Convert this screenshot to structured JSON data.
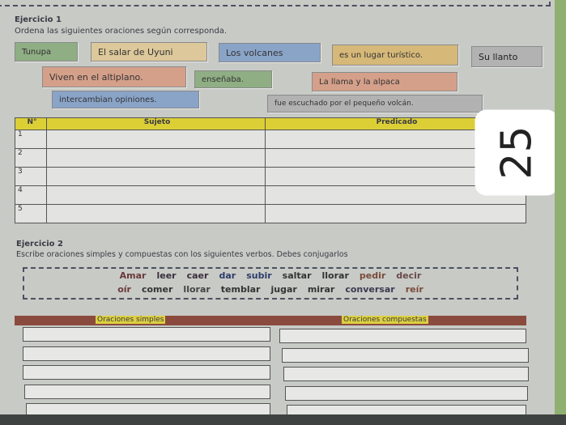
{
  "ex1": {
    "title": "Ejercicio 1",
    "instruction": "Ordena las siguientes oraciones según corresponda.",
    "chips": [
      "Tunupa",
      "El salar de Uyuni",
      "Los volcanes",
      "es un lugar turístico.",
      "Su llanto",
      "Viven en el altiplano.",
      "enseñaba.",
      "La llama y la alpaca",
      "intercambian opiniones.",
      "fue escuchado por el pequeño volcán."
    ],
    "table": {
      "headers": [
        "N°",
        "Sujeto",
        "Predicado"
      ],
      "rows": [
        "1",
        "2",
        "3",
        "4",
        "5"
      ]
    }
  },
  "page_number": "25",
  "ex2": {
    "title": "Ejercicio 2",
    "instruction": "Escribe oraciones simples y compuestas con los siguientes verbos. Debes conjugarlos",
    "verbs_row1": [
      "Amar",
      "leer",
      "caer",
      "dar",
      "subir",
      "saltar",
      "llorar",
      "pedir",
      "decir"
    ],
    "verbs_row2": [
      "oír",
      "comer",
      "llorar",
      "temblar",
      "jugar",
      "mirar",
      "conversar",
      "reír"
    ],
    "headers": [
      "Oraciones simples",
      "Oraciones compuestas"
    ]
  },
  "colors": {
    "header_yellow": "#dccf36",
    "header_maroon": "#8a4b3e"
  }
}
